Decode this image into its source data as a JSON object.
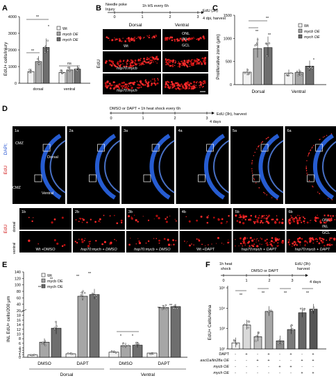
{
  "panelA": {
    "letter": "A",
    "ylabel": "EdU+ cells/injury",
    "ticks": [
      "0",
      "1000",
      "2000",
      "3000",
      "4000"
    ],
    "legend": [
      "Wt",
      "mycb OE",
      "mych OE"
    ],
    "groups": [
      "dorsal",
      "ventral"
    ],
    "sig": [
      "**",
      "**",
      "*",
      "ns"
    ],
    "colors": [
      "#f2f2f2",
      "#a6a6a6",
      "#6e6e6e"
    ]
  },
  "panelB": {
    "letter": "B",
    "timeline": {
      "start": "Needle poke",
      "injury": "Injury",
      "hs": "1h HS every 6h",
      "end": "EdU (3h)",
      "dpi": "4 dpi, harvest",
      "ticks": [
        "0",
        "1",
        "2",
        "3"
      ]
    },
    "cols": [
      "Dorsal",
      "Ventral"
    ],
    "side": "EdU",
    "layers": [
      "ONL",
      "INL",
      "GCL"
    ],
    "labels": [
      "Wt",
      "hsp70:mycb",
      "hsp70:mych"
    ]
  },
  "panelC": {
    "letter": "C",
    "ylabel": "Proliferative zone (μm)",
    "ticks": [
      "0",
      "500",
      "1000",
      "1500"
    ],
    "legend": [
      "Wt",
      "mycb OE",
      "mych OE"
    ],
    "groups": [
      "Dorsal",
      "Ventral"
    ],
    "sig": [
      "**",
      "**",
      "**",
      "*"
    ]
  },
  "panelD": {
    "letter": "D",
    "timeline": {
      "label": "DMSO or DAPT + 1h heat shock every 6h",
      "end": "EdU (3h), harvest",
      "days": "4 days",
      "ticks": [
        "0",
        "1",
        "2",
        "3"
      ]
    },
    "side1": [
      "DAPI;",
      "EdU"
    ],
    "side2": "EdU",
    "tops": [
      "1a",
      "2a",
      "3a",
      "4a",
      "5a",
      "6a"
    ],
    "bots": [
      "1b",
      "2b",
      "3b",
      "4b",
      "5b",
      "6b"
    ],
    "cmz": "CMZ",
    "dorsal": "Dorsal",
    "ventral": "Ventral",
    "rowlabels": [
      "dorsal",
      "ventral"
    ],
    "layers": [
      "ONL",
      "INL",
      "GCL"
    ],
    "conds": [
      "Wt +DMSO",
      "hsp70:mych + DMSO",
      "hsp70:mycb + DMSO",
      "Wt +DAPT",
      "hsp70:mych + DAPT",
      "hsp70:mycb + DAPT"
    ]
  },
  "panelE": {
    "letter": "E",
    "ylabel": "INL EdU+ cells/200 μm",
    "ticks": [
      "0",
      "1",
      "2",
      "3",
      "4",
      "6",
      "8",
      "10",
      "12",
      "14",
      "16",
      "18",
      "20",
      "40",
      "60",
      "80",
      "100",
      "120",
      "140"
    ],
    "legend": [
      "Wt",
      "mycb OE",
      "mych OE"
    ],
    "treat": [
      "DMSO",
      "DAPT",
      "DMSO",
      "DAPT"
    ],
    "regions": [
      "Dorsal",
      "Ventral"
    ],
    "sig": [
      "**",
      "**",
      "**",
      "**",
      "*",
      "*",
      "**",
      "**"
    ]
  },
  "panelF": {
    "letter": "F",
    "timeline": {
      "hs": "1h heat",
      "shock": "shock",
      "mid": "DMSO or DAPT",
      "edu": "EdU (3h)",
      "harvest": "harvest",
      "days": "4 days",
      "ticks": [
        "0",
        "1",
        "2",
        "3"
      ]
    },
    "ylabel": "EdU+ Cells/retina",
    "ticks": [
      "10²",
      "10³",
      "10⁴",
      "10⁵"
    ],
    "sig": [
      "**",
      "**",
      "**",
      "**"
    ],
    "rows": [
      {
        "label": "DAPT",
        "vals": [
          "-",
          "+",
          "-",
          "+",
          "-",
          "+",
          "-",
          "+"
        ]
      },
      {
        "label": "ascl1a/lin28a OE",
        "vals": [
          "-",
          "-",
          "+",
          "+",
          "-",
          "-",
          "+",
          "+"
        ]
      },
      {
        "label": "mycb OE",
        "vals": [
          "-",
          "-",
          "-",
          "-",
          "+",
          "+",
          "-",
          "-"
        ]
      },
      {
        "label": "mych OE",
        "vals": [
          "-",
          "-",
          "-",
          "-",
          "-",
          "-",
          "+",
          "+"
        ]
      }
    ]
  },
  "chart_data": [
    {
      "type": "bar",
      "title": "",
      "ylabel": "EdU+ cells/injury",
      "categories": [
        "dorsal",
        "ventral"
      ],
      "ylim": [
        0,
        4000
      ],
      "series": [
        {
          "name": "Wt",
          "values": [
            700,
            650
          ]
        },
        {
          "name": "mycb OE",
          "values": [
            1300,
            800
          ]
        },
        {
          "name": "mych OE",
          "values": [
            2150,
            850
          ]
        }
      ]
    },
    {
      "type": "bar",
      "title": "",
      "ylabel": "Proliferative zone (μm)",
      "categories": [
        "Dorsal",
        "Ventral"
      ],
      "ylim": [
        0,
        1500
      ],
      "series": [
        {
          "name": "Wt",
          "values": [
            270,
            250
          ]
        },
        {
          "name": "mycb OE",
          "values": [
            780,
            260
          ]
        },
        {
          "name": "mych OE",
          "values": [
            800,
            400
          ]
        }
      ]
    },
    {
      "type": "bar",
      "title": "",
      "ylabel": "INL EdU+ cells/200 μm",
      "categories": [
        "Dorsal DMSO",
        "Dorsal DAPT",
        "Ventral DMSO",
        "Ventral DAPT"
      ],
      "series": [
        {
          "name": "Wt",
          "values": [
            1,
            1.5,
            2.2,
            1.8
          ]
        },
        {
          "name": "mycb OE",
          "values": [
            6.5,
            65,
            5,
            30
          ]
        },
        {
          "name": "mych OE",
          "values": [
            12.5,
            70,
            5.2,
            33
          ]
        }
      ]
    },
    {
      "type": "bar",
      "title": "",
      "ylabel": "EdU+ Cells/retina",
      "scale": "log",
      "ylim": [
        100,
        100000
      ],
      "categories": [
        "g1",
        "g2",
        "g3",
        "g4",
        "g5",
        "g6",
        "g7",
        "g8"
      ],
      "values": [
        200,
        1500,
        400,
        7000,
        250,
        900,
        6000,
        9000
      ]
    }
  ]
}
